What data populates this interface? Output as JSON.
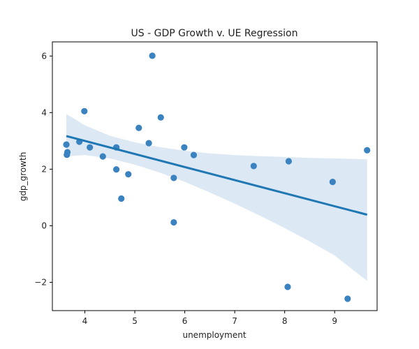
{
  "chart_data": {
    "type": "scatter",
    "title": "US - GDP Growth v. UE Regression",
    "xlabel": "unemployment",
    "ylabel": "gdp_growth",
    "xlim": [
      3.35,
      9.85
    ],
    "ylim": [
      -3.0,
      6.5
    ],
    "xticks": [
      4,
      5,
      6,
      7,
      8,
      9
    ],
    "yticks": [
      -2,
      0,
      2,
      4,
      6
    ],
    "ytick_labels": [
      "−2",
      "0",
      "2",
      "4",
      "6"
    ],
    "grid": false,
    "legend": "none",
    "colors": {
      "points": "#3a82c0",
      "line": "#1f77b4",
      "band": "#dce8f3"
    },
    "points": [
      {
        "x": 3.63,
        "y": 2.87
      },
      {
        "x": 3.65,
        "y": 2.6
      },
      {
        "x": 3.64,
        "y": 2.51
      },
      {
        "x": 3.89,
        "y": 2.97
      },
      {
        "x": 3.99,
        "y": 4.05
      },
      {
        "x": 4.1,
        "y": 2.77
      },
      {
        "x": 4.36,
        "y": 2.45
      },
      {
        "x": 4.63,
        "y": 2.77
      },
      {
        "x": 4.63,
        "y": 1.99
      },
      {
        "x": 4.73,
        "y": 0.96
      },
      {
        "x": 4.87,
        "y": 1.82
      },
      {
        "x": 5.08,
        "y": 3.46
      },
      {
        "x": 5.28,
        "y": 2.92
      },
      {
        "x": 5.35,
        "y": 6.01
      },
      {
        "x": 5.52,
        "y": 3.83
      },
      {
        "x": 5.78,
        "y": 1.69
      },
      {
        "x": 5.78,
        "y": 0.12
      },
      {
        "x": 5.99,
        "y": 2.77
      },
      {
        "x": 6.18,
        "y": 2.5
      },
      {
        "x": 7.38,
        "y": 2.11
      },
      {
        "x": 8.08,
        "y": 2.28
      },
      {
        "x": 8.06,
        "y": -2.16
      },
      {
        "x": 8.96,
        "y": 1.55
      },
      {
        "x": 9.26,
        "y": -2.58
      },
      {
        "x": 9.65,
        "y": 2.67
      }
    ],
    "regression": {
      "x_start": 3.63,
      "y_start": 3.17,
      "x_end": 9.65,
      "y_end": 0.39
    },
    "confidence_band": {
      "x": [
        3.63,
        4.0,
        4.5,
        5.0,
        5.5,
        6.0,
        6.5,
        7.0,
        7.5,
        8.0,
        8.5,
        9.0,
        9.65
      ],
      "upper": [
        3.95,
        3.55,
        3.18,
        2.95,
        2.78,
        2.65,
        2.56,
        2.5,
        2.46,
        2.43,
        2.4,
        2.38,
        2.35
      ],
      "lower": [
        2.45,
        2.5,
        2.38,
        2.16,
        1.88,
        1.55,
        1.18,
        0.78,
        0.36,
        -0.08,
        -0.55,
        -1.05,
        -1.95
      ]
    }
  }
}
